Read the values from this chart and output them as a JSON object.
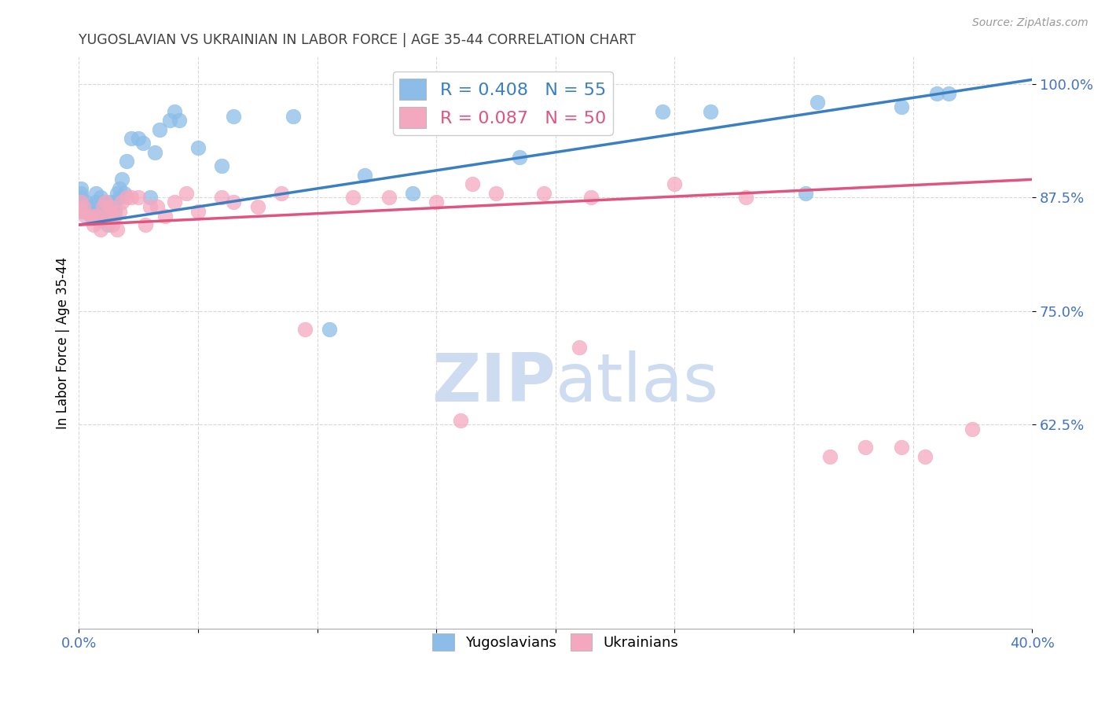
{
  "title": "YUGOSLAVIAN VS UKRAINIAN IN LABOR FORCE | AGE 35-44 CORRELATION CHART",
  "source": "Source: ZipAtlas.com",
  "ylabel": "In Labor Force | Age 35-44",
  "xlim": [
    0.0,
    0.4
  ],
  "ylim": [
    0.4,
    1.03
  ],
  "yticks": [
    0.625,
    0.75,
    0.875,
    1.0
  ],
  "ytick_labels": [
    "62.5%",
    "75.0%",
    "87.5%",
    "100.0%"
  ],
  "xticks": [
    0.0,
    0.05,
    0.1,
    0.15,
    0.2,
    0.25,
    0.3,
    0.35,
    0.4
  ],
  "xtick_labels": [
    "0.0%",
    "",
    "",
    "",
    "",
    "",
    "",
    "",
    "40.0%"
  ],
  "blue_R": 0.408,
  "blue_N": 55,
  "pink_R": 0.087,
  "pink_N": 50,
  "blue_color": "#8bbde8",
  "pink_color": "#f4a8bf",
  "blue_line_color": "#3a7fc1",
  "pink_line_color": "#e05580",
  "axis_color": "#4472c4",
  "title_color": "#404040",
  "grid_color": "#d8d8d8",
  "watermark_color": "#cddcf0",
  "blue_line_x0": 0.0,
  "blue_line_y0": 0.845,
  "blue_line_x1": 0.4,
  "blue_line_y1": 1.005,
  "pink_line_x0": 0.0,
  "pink_line_y0": 0.845,
  "pink_line_x1": 0.4,
  "pink_line_y1": 0.895,
  "blue_scatter_x": [
    0.001,
    0.001,
    0.001,
    0.001,
    0.002,
    0.003,
    0.004,
    0.005,
    0.006,
    0.007,
    0.007,
    0.008,
    0.009,
    0.009,
    0.01,
    0.01,
    0.011,
    0.012,
    0.012,
    0.013,
    0.014,
    0.015,
    0.015,
    0.016,
    0.017,
    0.017,
    0.018,
    0.019,
    0.02,
    0.022,
    0.025,
    0.027,
    0.03,
    0.032,
    0.034,
    0.038,
    0.04,
    0.042,
    0.05,
    0.06,
    0.065,
    0.09,
    0.105,
    0.12,
    0.14,
    0.16,
    0.185,
    0.22,
    0.245,
    0.265,
    0.305,
    0.31,
    0.345,
    0.36,
    0.365
  ],
  "blue_scatter_y": [
    0.87,
    0.875,
    0.88,
    0.885,
    0.86,
    0.87,
    0.865,
    0.855,
    0.865,
    0.87,
    0.88,
    0.86,
    0.85,
    0.875,
    0.855,
    0.87,
    0.86,
    0.865,
    0.845,
    0.87,
    0.865,
    0.86,
    0.87,
    0.88,
    0.875,
    0.885,
    0.895,
    0.88,
    0.915,
    0.94,
    0.94,
    0.935,
    0.875,
    0.925,
    0.95,
    0.96,
    0.97,
    0.96,
    0.93,
    0.91,
    0.965,
    0.965,
    0.73,
    0.9,
    0.88,
    0.965,
    0.92,
    0.975,
    0.97,
    0.97,
    0.88,
    0.98,
    0.975,
    0.99,
    0.99
  ],
  "pink_scatter_x": [
    0.001,
    0.001,
    0.002,
    0.003,
    0.005,
    0.006,
    0.007,
    0.008,
    0.009,
    0.01,
    0.011,
    0.012,
    0.013,
    0.013,
    0.014,
    0.015,
    0.016,
    0.017,
    0.018,
    0.02,
    0.022,
    0.025,
    0.028,
    0.03,
    0.033,
    0.036,
    0.04,
    0.045,
    0.05,
    0.06,
    0.065,
    0.075,
    0.085,
    0.095,
    0.115,
    0.13,
    0.15,
    0.16,
    0.165,
    0.175,
    0.195,
    0.21,
    0.215,
    0.25,
    0.28,
    0.315,
    0.33,
    0.345,
    0.355,
    0.375
  ],
  "pink_scatter_y": [
    0.86,
    0.87,
    0.865,
    0.855,
    0.855,
    0.845,
    0.855,
    0.85,
    0.84,
    0.865,
    0.87,
    0.85,
    0.86,
    0.865,
    0.845,
    0.855,
    0.84,
    0.86,
    0.87,
    0.875,
    0.875,
    0.875,
    0.845,
    0.865,
    0.865,
    0.855,
    0.87,
    0.88,
    0.86,
    0.875,
    0.87,
    0.865,
    0.88,
    0.73,
    0.875,
    0.875,
    0.87,
    0.63,
    0.89,
    0.88,
    0.88,
    0.71,
    0.875,
    0.89,
    0.875,
    0.59,
    0.6,
    0.6,
    0.59,
    0.62
  ]
}
